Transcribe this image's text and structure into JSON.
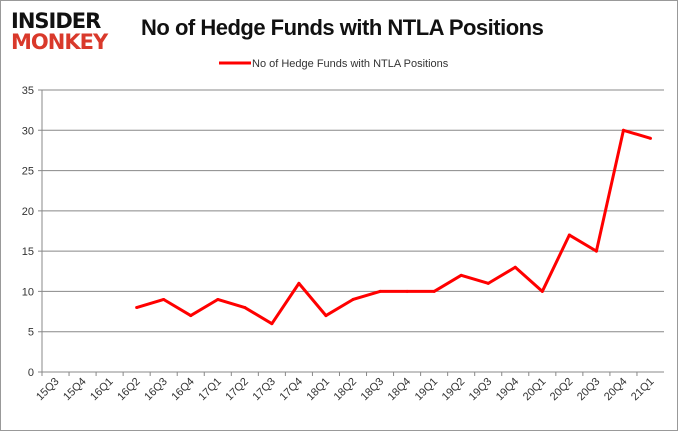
{
  "logo": {
    "line1": "INSIDER",
    "line2": "MONKEY"
  },
  "chart_data": {
    "type": "line",
    "title": "No of Hedge Funds with NTLA Positions",
    "legend": {
      "entries": [
        "No of Hedge Funds with NTLA Positions"
      ],
      "placement": "top"
    },
    "categories": [
      "15Q3",
      "15Q4",
      "16Q1",
      "16Q2",
      "16Q3",
      "16Q4",
      "17Q1",
      "17Q2",
      "17Q3",
      "17Q4",
      "18Q1",
      "18Q2",
      "18Q3",
      "18Q4",
      "19Q1",
      "19Q2",
      "19Q3",
      "19Q4",
      "20Q1",
      "20Q2",
      "20Q3",
      "20Q4",
      "21Q1"
    ],
    "series": [
      {
        "name": "No of Hedge Funds with NTLA Positions",
        "color": "#ff0000",
        "values": [
          null,
          null,
          null,
          8,
          9,
          7,
          9,
          8,
          6,
          11,
          7,
          9,
          10,
          10,
          10,
          12,
          11,
          13,
          10,
          17,
          15,
          30,
          29
        ]
      }
    ],
    "ylim": [
      0,
      35
    ],
    "yticks": [
      0,
      5,
      10,
      15,
      20,
      25,
      30,
      35
    ],
    "grid": true
  }
}
